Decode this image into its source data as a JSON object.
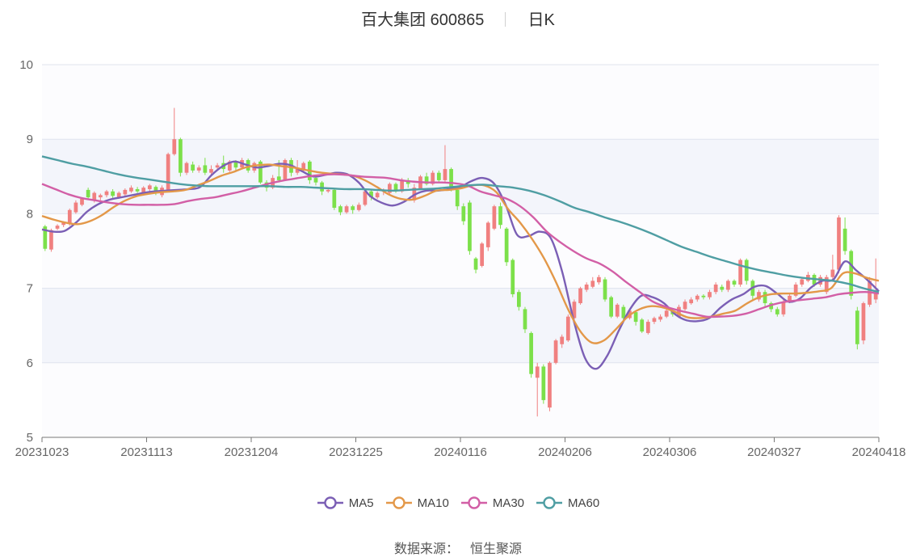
{
  "header": {
    "stock": "百大集团 600865",
    "period": "日K"
  },
  "source": {
    "label": "数据来源：",
    "value": "恒生聚源"
  },
  "colors": {
    "up": "#f08080",
    "down": "#7ce04a",
    "grid": "#dfe3ee",
    "band": "#f3f5fb",
    "ma5": "#7b5fb5",
    "ma10": "#e39849",
    "ma30": "#d25fa6",
    "ma60": "#4f9ea3"
  },
  "chart_data": {
    "type": "candlestick",
    "ylim": [
      5,
      10
    ],
    "yticks": [
      "5",
      "6",
      "7",
      "8",
      "9",
      "10"
    ],
    "xticks": [
      "20231023",
      "20231113",
      "20231204",
      "20231225",
      "20240116",
      "20240206",
      "20240306",
      "20240327",
      "20240418"
    ],
    "grid": true,
    "legend_position": "bottom",
    "series": [
      {
        "name": "MA5",
        "key": "ma5",
        "values": [
          7.79,
          7.76,
          7.77,
          7.88,
          8.03,
          8.13,
          8.19,
          8.22,
          8.25,
          8.28,
          8.3,
          8.31,
          8.32,
          8.33,
          8.36,
          8.52,
          8.64,
          8.7,
          8.66,
          8.62,
          8.64,
          8.67,
          8.65,
          8.57,
          8.5,
          8.52,
          8.55,
          8.53,
          8.42,
          8.24,
          8.15,
          8.11,
          8.16,
          8.26,
          8.31,
          8.31,
          8.33,
          8.36,
          8.44,
          8.48,
          8.4,
          8.12,
          7.72,
          7.7,
          7.76,
          7.67,
          7.22,
          6.58,
          6.07,
          5.92,
          6.1,
          6.43,
          6.72,
          6.9,
          6.88,
          6.8,
          6.65,
          6.57,
          6.56,
          6.6,
          6.74,
          6.85,
          6.92,
          7.02,
          7.03,
          6.93,
          6.82,
          6.86,
          7.01,
          7.1,
          7.12,
          7.36,
          7.24,
          7.11,
          6.96
        ]
      },
      {
        "name": "MA10",
        "key": "ma10",
        "values": [
          7.97,
          7.92,
          7.88,
          7.86,
          7.9,
          7.98,
          8.09,
          8.18,
          8.24,
          8.27,
          8.29,
          8.3,
          8.32,
          8.38,
          8.44,
          8.51,
          8.56,
          8.62,
          8.65,
          8.66,
          8.64,
          8.62,
          8.59,
          8.56,
          8.54,
          8.53,
          8.51,
          8.45,
          8.36,
          8.26,
          8.2,
          8.19,
          8.24,
          8.31,
          8.32,
          8.34,
          8.38,
          8.38,
          8.29,
          8.06,
          7.88,
          7.66,
          7.4,
          7.08,
          6.72,
          6.43,
          6.27,
          6.3,
          6.45,
          6.62,
          6.72,
          6.76,
          6.74,
          6.68,
          6.61,
          6.6,
          6.62,
          6.66,
          6.7,
          6.8,
          6.88,
          6.92,
          6.93,
          6.93,
          6.94,
          6.96,
          7.0,
          7.2,
          7.2,
          7.14,
          7.1
        ]
      },
      {
        "name": "MA30",
        "key": "ma30",
        "values": [
          8.4,
          8.33,
          8.26,
          8.21,
          8.18,
          8.15,
          8.13,
          8.12,
          8.12,
          8.12,
          8.13,
          8.17,
          8.2,
          8.22,
          8.26,
          8.3,
          8.35,
          8.4,
          8.44,
          8.47,
          8.5,
          8.52,
          8.53,
          8.52,
          8.5,
          8.49,
          8.48,
          8.45,
          8.43,
          8.42,
          8.42,
          8.41,
          8.38,
          8.3,
          8.25,
          8.2,
          8.1,
          7.95,
          7.76,
          7.62,
          7.5,
          7.4,
          7.33,
          7.22,
          7.08,
          6.95,
          6.82,
          6.75,
          6.7,
          6.66,
          6.62,
          6.62,
          6.63,
          6.66,
          6.72,
          6.78,
          6.82,
          6.84,
          6.86,
          6.88,
          6.92,
          6.94,
          6.95,
          6.93
        ]
      },
      {
        "name": "MA60",
        "key": "ma60",
        "values": [
          8.77,
          8.72,
          8.67,
          8.63,
          8.58,
          8.53,
          8.49,
          8.46,
          8.43,
          8.4,
          8.38,
          8.37,
          8.37,
          8.37,
          8.37,
          8.37,
          8.36,
          8.36,
          8.35,
          8.34,
          8.33,
          8.33,
          8.32,
          8.31,
          8.32,
          8.33,
          8.34,
          8.36,
          8.38,
          8.39,
          8.37,
          8.35,
          8.31,
          8.25,
          8.17,
          8.08,
          8.02,
          7.95,
          7.89,
          7.82,
          7.74,
          7.65,
          7.56,
          7.49,
          7.42,
          7.36,
          7.3,
          7.25,
          7.21,
          7.17,
          7.14,
          7.12,
          7.1,
          7.06,
          7.0,
          6.95
        ]
      }
    ],
    "candles": [
      [
        7.83,
        7.53,
        7.85,
        7.5
      ],
      [
        7.52,
        7.78,
        7.8,
        7.49
      ],
      [
        7.8,
        7.84,
        7.86,
        7.78
      ],
      [
        7.85,
        7.88,
        7.9,
        7.82
      ],
      [
        7.86,
        8.05,
        8.07,
        7.84
      ],
      [
        8.02,
        8.15,
        8.18,
        8.0
      ],
      [
        8.12,
        8.2,
        8.22,
        8.1
      ],
      [
        8.32,
        8.22,
        8.35,
        8.2
      ],
      [
        8.18,
        8.28,
        8.3,
        8.15
      ],
      [
        8.22,
        8.25,
        8.27,
        8.18
      ],
      [
        8.25,
        8.3,
        8.32,
        8.22
      ],
      [
        8.3,
        8.24,
        8.33,
        8.2
      ],
      [
        8.22,
        8.28,
        8.3,
        8.2
      ],
      [
        8.26,
        8.32,
        8.34,
        8.24
      ],
      [
        8.3,
        8.35,
        8.38,
        8.28
      ],
      [
        8.33,
        8.3,
        8.36,
        8.28
      ],
      [
        8.28,
        8.35,
        8.37,
        8.26
      ],
      [
        8.33,
        8.38,
        8.4,
        8.3
      ],
      [
        8.36,
        8.28,
        8.38,
        8.25
      ],
      [
        8.25,
        8.35,
        8.38,
        8.22
      ],
      [
        8.32,
        8.8,
        8.82,
        8.3
      ],
      [
        8.8,
        9.0,
        9.42,
        8.78
      ],
      [
        9.0,
        8.55,
        9.02,
        8.5
      ],
      [
        8.55,
        8.68,
        8.7,
        8.52
      ],
      [
        8.66,
        8.58,
        8.7,
        8.55
      ],
      [
        8.58,
        8.62,
        8.65,
        8.55
      ],
      [
        8.65,
        8.55,
        8.75,
        8.52
      ],
      [
        8.55,
        8.6,
        8.65,
        8.52
      ],
      [
        8.62,
        8.65,
        8.68,
        8.58
      ],
      [
        8.68,
        8.6,
        8.78,
        8.55
      ],
      [
        8.58,
        8.7,
        8.72,
        8.56
      ],
      [
        8.7,
        8.62,
        8.72,
        8.58
      ],
      [
        8.62,
        8.72,
        8.75,
        8.6
      ],
      [
        8.72,
        8.58,
        8.74,
        8.55
      ],
      [
        8.58,
        8.68,
        8.7,
        8.55
      ],
      [
        8.7,
        8.42,
        8.72,
        8.4
      ],
      [
        8.42,
        8.35,
        8.45,
        8.3
      ],
      [
        8.35,
        8.48,
        8.52,
        8.33
      ],
      [
        8.5,
        8.45,
        8.72,
        8.42
      ],
      [
        8.45,
        8.72,
        8.74,
        8.44
      ],
      [
        8.72,
        8.55,
        8.75,
        8.5
      ],
      [
        8.55,
        8.62,
        8.72,
        8.52
      ],
      [
        8.6,
        8.68,
        8.7,
        8.55
      ],
      [
        8.7,
        8.45,
        8.72,
        8.4
      ],
      [
        8.48,
        8.42,
        8.5,
        8.38
      ],
      [
        8.42,
        8.3,
        8.44,
        8.25
      ],
      [
        8.3,
        8.32,
        8.35,
        8.28
      ],
      [
        8.32,
        8.08,
        8.34,
        8.05
      ],
      [
        8.1,
        8.02,
        8.12,
        7.98
      ],
      [
        8.02,
        8.1,
        8.12,
        8.0
      ],
      [
        8.1,
        8.05,
        8.12,
        8.0
      ],
      [
        8.05,
        8.12,
        8.15,
        8.03
      ],
      [
        8.12,
        8.3,
        8.32,
        8.1
      ],
      [
        8.3,
        8.22,
        8.32,
        8.18
      ],
      [
        8.22,
        8.28,
        8.3,
        8.2
      ],
      [
        8.3,
        8.32,
        8.34,
        8.25
      ],
      [
        8.28,
        8.4,
        8.42,
        8.25
      ],
      [
        8.4,
        8.3,
        8.42,
        8.28
      ],
      [
        8.3,
        8.45,
        8.48,
        8.28
      ],
      [
        8.45,
        8.4,
        8.48,
        8.35
      ],
      [
        8.18,
        8.35,
        8.4,
        8.15
      ],
      [
        8.34,
        8.5,
        8.52,
        8.32
      ],
      [
        8.5,
        8.4,
        8.55,
        8.38
      ],
      [
        8.4,
        8.55,
        8.58,
        8.38
      ],
      [
        8.55,
        8.45,
        8.58,
        8.42
      ],
      [
        8.45,
        8.6,
        8.92,
        8.42
      ],
      [
        8.6,
        8.32,
        8.62,
        8.3
      ],
      [
        8.32,
        8.1,
        8.34,
        8.05
      ],
      [
        8.1,
        7.9,
        8.14,
        7.85
      ],
      [
        8.15,
        7.5,
        8.18,
        7.45
      ],
      [
        7.4,
        7.25,
        7.42,
        7.2
      ],
      [
        7.3,
        7.6,
        7.62,
        7.28
      ],
      [
        7.55,
        7.88,
        7.9,
        7.5
      ],
      [
        7.8,
        8.1,
        8.12,
        7.78
      ],
      [
        8.1,
        7.85,
        8.15,
        7.8
      ],
      [
        7.8,
        7.35,
        7.82,
        7.3
      ],
      [
        7.38,
        6.92,
        7.4,
        6.88
      ],
      [
        6.95,
        6.75,
        6.98,
        6.7
      ],
      [
        6.72,
        6.45,
        6.75,
        6.4
      ],
      [
        6.4,
        5.85,
        6.42,
        5.8
      ],
      [
        5.8,
        5.95,
        6.0,
        5.28
      ],
      [
        5.95,
        5.5,
        5.98,
        5.45
      ],
      [
        5.4,
        6.0,
        6.02,
        5.35
      ],
      [
        6.0,
        6.3,
        6.32,
        5.98
      ],
      [
        6.25,
        6.35,
        6.38,
        6.2
      ],
      [
        6.3,
        6.62,
        6.65,
        6.28
      ],
      [
        6.6,
        6.82,
        6.85,
        6.58
      ],
      [
        6.8,
        7.0,
        7.02,
        6.78
      ],
      [
        6.98,
        7.05,
        7.08,
        6.95
      ],
      [
        7.02,
        7.1,
        7.15,
        7.0
      ],
      [
        7.08,
        7.15,
        7.18,
        7.05
      ],
      [
        7.12,
        6.85,
        7.15,
        6.82
      ],
      [
        6.88,
        6.62,
        6.9,
        6.6
      ],
      [
        6.62,
        6.78,
        6.8,
        6.6
      ],
      [
        6.75,
        6.6,
        6.78,
        6.55
      ],
      [
        6.6,
        6.7,
        6.72,
        6.58
      ],
      [
        6.68,
        6.55,
        6.7,
        6.5
      ],
      [
        6.58,
        6.42,
        6.6,
        6.4
      ],
      [
        6.4,
        6.55,
        6.58,
        6.38
      ],
      [
        6.55,
        6.6,
        6.62,
        6.52
      ],
      [
        6.58,
        6.62,
        6.65,
        6.55
      ],
      [
        6.62,
        6.7,
        6.72,
        6.6
      ],
      [
        6.7,
        6.65,
        6.72,
        6.62
      ],
      [
        6.62,
        6.75,
        6.78,
        6.6
      ],
      [
        6.72,
        6.82,
        6.85,
        6.7
      ],
      [
        6.8,
        6.85,
        6.88,
        6.78
      ],
      [
        6.85,
        6.9,
        6.92,
        6.82
      ],
      [
        6.9,
        6.88,
        6.92,
        6.85
      ],
      [
        6.88,
        6.95,
        6.98,
        6.85
      ],
      [
        6.95,
        7.05,
        7.08,
        6.92
      ],
      [
        7.02,
        6.98,
        7.05,
        6.95
      ],
      [
        6.98,
        7.1,
        7.12,
        6.95
      ],
      [
        7.1,
        7.05,
        7.12,
        7.02
      ],
      [
        7.05,
        7.38,
        7.4,
        7.02
      ],
      [
        7.38,
        7.1,
        7.4,
        7.05
      ],
      [
        7.1,
        6.9,
        7.12,
        6.85
      ],
      [
        6.85,
        6.95,
        6.98,
        6.82
      ],
      [
        6.95,
        6.8,
        6.98,
        6.75
      ],
      [
        6.8,
        6.72,
        6.82,
        6.68
      ],
      [
        6.72,
        6.65,
        6.75,
        6.62
      ],
      [
        6.65,
        6.82,
        6.85,
        6.62
      ],
      [
        6.82,
        6.9,
        6.92,
        6.8
      ],
      [
        6.9,
        7.05,
        7.08,
        6.88
      ],
      [
        7.05,
        7.12,
        7.15,
        7.02
      ],
      [
        7.1,
        7.18,
        7.22,
        7.08
      ],
      [
        7.18,
        7.05,
        7.2,
        7.02
      ],
      [
        7.05,
        7.15,
        7.18,
        7.02
      ],
      [
        6.95,
        7.15,
        7.18,
        6.92
      ],
      [
        7.15,
        7.25,
        7.45,
        7.12
      ],
      [
        7.25,
        7.95,
        7.98,
        7.2
      ],
      [
        7.8,
        7.5,
        7.95,
        7.45
      ],
      [
        7.5,
        6.9,
        7.52,
        6.85
      ],
      [
        6.7,
        6.25,
        6.75,
        6.18
      ],
      [
        6.3,
        6.8,
        6.82,
        6.25
      ],
      [
        6.78,
        7.1,
        7.15,
        6.75
      ],
      [
        6.85,
        6.95,
        7.4,
        6.8
      ]
    ]
  }
}
